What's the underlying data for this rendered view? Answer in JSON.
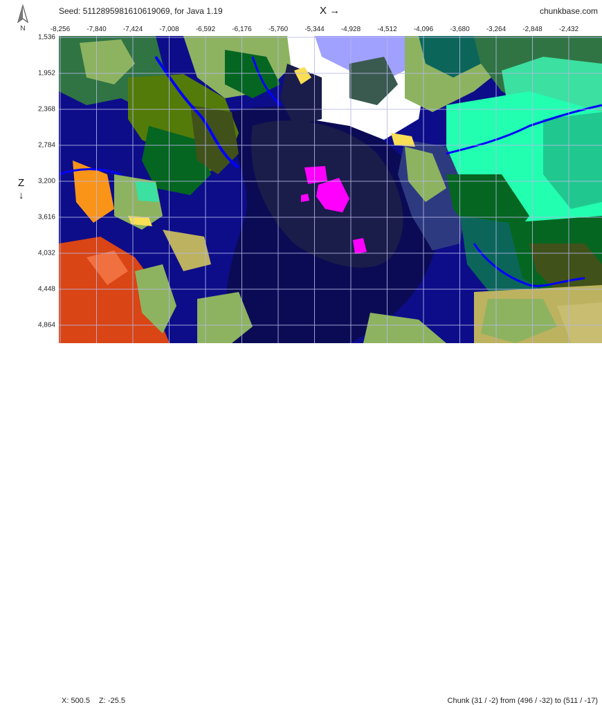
{
  "header": {
    "seed_text": "Seed: 5112895981610619069, for Java 1.19",
    "site_name": "chunkbase.com",
    "x_axis_label": "X →",
    "compass_letter": "N"
  },
  "side": {
    "z_axis_label": "Z",
    "z_arrow": "↓"
  },
  "x_ticks": [
    "-8,256",
    "-7,840",
    "-7,424",
    "-7,008",
    "-6,592",
    "-6,176",
    "-5,760",
    "-5,344",
    "-4,928",
    "-4,512",
    "-4,096",
    "-3,680",
    "-3,264",
    "-2,848",
    "-2,432"
  ],
  "z_ticks": [
    "1,536",
    "1,952",
    "2,368",
    "2,784",
    "3,200",
    "3,616",
    "4,032",
    "4,448",
    "4,864"
  ],
  "status": {
    "x_readout": "X: 500.5",
    "z_readout": "Z: -25.5",
    "chunk_info": "Chunk (31 / -2) from (496 / -32) to (511 / -17)"
  },
  "biome_colors": {
    "deep_ocean": "#0b0b55",
    "deep_dark_ocean": "#1a1c4a",
    "ocean": "#0d0d8a",
    "river": "#0000ff",
    "plains": "#8db360",
    "forest": "#056621",
    "dark_forest": "#40511a",
    "birch_forest": "#307444",
    "taiga": "#0b6659",
    "snowy": "#ffffff",
    "frozen_peaks": "#a0a0ff",
    "jungle": "#537b09",
    "savanna": "#bdb25f",
    "badlands": "#d94515",
    "beach": "#fade55",
    "mushroom": "#ff00ff",
    "cherry_aqua": "#22ffb0",
    "lush": "#3ce0a0",
    "desert_orange": "#fa9418",
    "swamp": "#2c4205"
  }
}
